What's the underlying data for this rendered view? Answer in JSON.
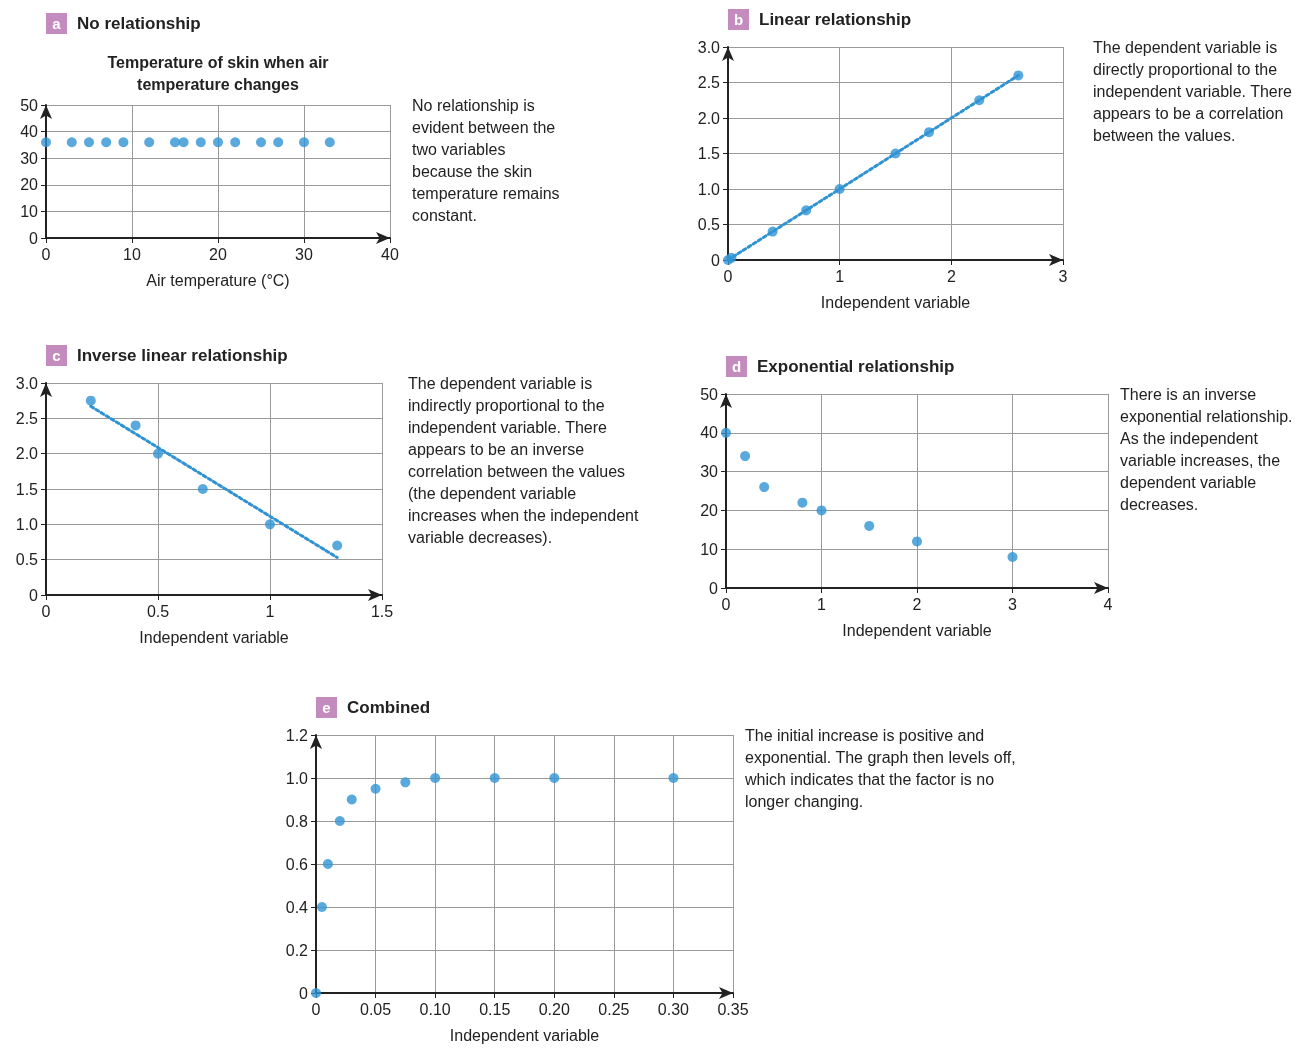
{
  "chart_data": [
    {
      "type": "scatter",
      "title": "No relationship",
      "subtitle": "Temperature of skin when air temperature changes",
      "xlabel": "Air temperature (°C)",
      "annotations": [
        "a",
        "No relationship is evident between the two variables because the skin temperature remains constant."
      ],
      "x": [
        0,
        3,
        5,
        7,
        9,
        12,
        15,
        16,
        18,
        20,
        22,
        25,
        27,
        30,
        33
      ],
      "series": [
        {
          "color": "#2f93d3",
          "values": [
            36,
            36,
            36,
            36,
            36,
            36,
            36,
            36,
            36,
            36,
            36,
            36,
            36,
            36,
            36
          ]
        }
      ],
      "xlim": [
        0,
        40
      ],
      "xticks": [
        0,
        10,
        20,
        30,
        40
      ],
      "ylim": [
        0,
        50
      ],
      "yticks": [
        0,
        10,
        20,
        30,
        40,
        50
      ],
      "grid": true,
      "marker": "circle"
    },
    {
      "type": "scatter",
      "title": "Linear relationship",
      "xlabel": "Independent variable",
      "annotations": [
        "b",
        "The dependent variable is directly proportional to the independent variable. There appears to be a correlation between the values."
      ],
      "x": [
        0,
        0.03,
        0.4,
        0.7,
        1,
        1.5,
        1.8,
        2.25,
        2.6
      ],
      "series": [
        {
          "color": "#2f93d3",
          "values": [
            0,
            0.03,
            0.4,
            0.7,
            1,
            1.5,
            1.8,
            2.25,
            2.6
          ]
        },
        {
          "type": "line",
          "color": "#2f93d3",
          "x": [
            0,
            2.6
          ],
          "values": [
            0,
            2.6
          ],
          "marker": "none",
          "line_style": "dotted"
        }
      ],
      "xlim": [
        0,
        3
      ],
      "xticks": [
        0,
        1,
        2,
        3
      ],
      "ylim": [
        0,
        3
      ],
      "yticks": [
        0,
        0.5,
        {
          "value": 1,
          "label": "1.0"
        },
        1.5,
        {
          "value": 2,
          "label": "2.0"
        },
        2.5,
        {
          "value": 3,
          "label": "3.0"
        }
      ],
      "grid": true,
      "marker": "circle"
    },
    {
      "type": "scatter",
      "title": "Inverse linear relationship",
      "xlabel": "Independent variable",
      "annotations": [
        "c",
        "The dependent variable is indirectly proportional to the independent variable. There appears to be an inverse correlation between the values (the dependent variable increases when the independent variable decreases)."
      ],
      "x": [
        0.2,
        0.4,
        0.5,
        0.7,
        1,
        1.3
      ],
      "series": [
        {
          "color": "#2f93d3",
          "values": [
            2.75,
            2.4,
            2.0,
            1.5,
            1.0,
            0.7
          ]
        },
        {
          "type": "line",
          "color": "#2f93d3",
          "x": [
            0.2,
            1.3
          ],
          "values": [
            2.67,
            0.53
          ],
          "marker": "none",
          "line_style": "dotted"
        }
      ],
      "xlim": [
        0,
        1.5
      ],
      "xticks": [
        0,
        0.5,
        1,
        1.5
      ],
      "ylim": [
        0,
        3
      ],
      "yticks": [
        0,
        0.5,
        {
          "value": 1,
          "label": "1.0"
        },
        1.5,
        {
          "value": 2,
          "label": "2.0"
        },
        2.5,
        {
          "value": 3,
          "label": "3.0"
        }
      ],
      "grid": true,
      "marker": "circle"
    },
    {
      "type": "scatter",
      "title": "Exponential relationship",
      "xlabel": "Independent variable",
      "annotations": [
        "d",
        "There is an inverse exponential relationship. As the independent variable increases, the dependent variable decreases."
      ],
      "x": [
        0,
        0.2,
        0.4,
        0.8,
        1,
        1.5,
        2,
        3
      ],
      "series": [
        {
          "color": "#2f93d3",
          "values": [
            40,
            34,
            26,
            22,
            20,
            16,
            12,
            8
          ]
        }
      ],
      "xlim": [
        0,
        4
      ],
      "xticks": [
        0,
        1,
        2,
        3,
        4
      ],
      "ylim": [
        0,
        50
      ],
      "yticks": [
        0,
        10,
        20,
        30,
        40,
        50
      ],
      "grid": true,
      "marker": "circle"
    },
    {
      "type": "scatter",
      "title": "Combined",
      "xlabel": "Independent variable",
      "annotations": [
        "e",
        "The initial increase is positive and exponential. The graph then levels off, which indicates that the factor is no longer changing."
      ],
      "x": [
        0,
        0.005,
        0.01,
        0.02,
        0.03,
        0.05,
        0.075,
        0.1,
        0.15,
        0.2,
        0.3
      ],
      "series": [
        {
          "color": "#2f93d3",
          "values": [
            0,
            0.4,
            0.6,
            0.8,
            0.9,
            0.95,
            0.98,
            1,
            1,
            1,
            1
          ]
        }
      ],
      "xlim": [
        0,
        0.35
      ],
      "xticks": [
        0,
        0.05,
        {
          "value": 0.1,
          "label": "0.10"
        },
        0.15,
        {
          "value": 0.2,
          "label": "0.20"
        },
        0.25,
        {
          "value": 0.3,
          "label": "0.30"
        },
        0.35
      ],
      "ylim": [
        0,
        1.2
      ],
      "yticks": [
        0,
        0.2,
        0.4,
        0.6,
        0.8,
        {
          "value": 1,
          "label": "1.0"
        },
        1.2
      ],
      "grid": true,
      "marker": "circle"
    }
  ]
}
